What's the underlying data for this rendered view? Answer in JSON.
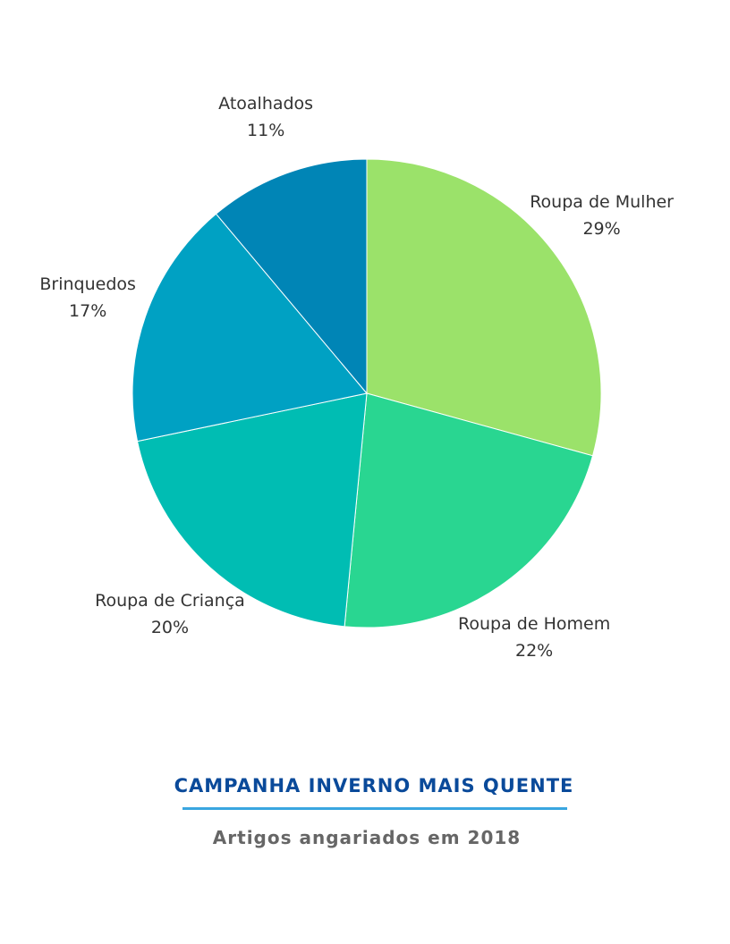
{
  "chart_data": {
    "type": "pie",
    "title": "CAMPANHA INVERNO MAIS QUENTE",
    "subtitle": "Artigos angariados em 2018",
    "slices": [
      {
        "label": "Roupa de Mulher",
        "value": 29,
        "display": "29%",
        "color": "#9be26a"
      },
      {
        "label": "Roupa de Homem",
        "value": 22,
        "display": "22%",
        "color": "#29d691"
      },
      {
        "label": "Roupa de Criança",
        "value": 20,
        "display": "20%",
        "color": "#00bdb3"
      },
      {
        "label": "Brinquedos",
        "value": 17,
        "display": "17%",
        "color": "#00a1c3"
      },
      {
        "label": "Atoalhados",
        "value": 11,
        "display": "11%",
        "color": "#0085b6"
      }
    ]
  },
  "colors": {
    "title": "#0a4a9a",
    "rule": "#3aa6e0",
    "subtitle": "#666666",
    "label": "#333333"
  }
}
